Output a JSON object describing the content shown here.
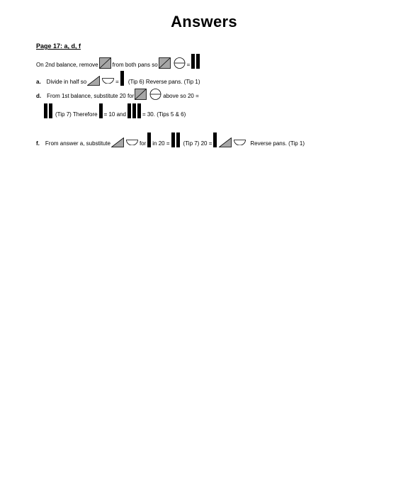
{
  "title": "Answers",
  "heading": "Page 17:  a, d, f",
  "lines": {
    "intro": {
      "t1": "On 2nd balance, remove",
      "t2": "from both pans so",
      "t3": "="
    },
    "a": {
      "label": "a.",
      "t1": "Divide in half so",
      "t2": "=",
      "t3": "(Tip 6)  Reverse pans.  (Tip 1)"
    },
    "d1": {
      "label": "d.",
      "t1": "From 1st balance, substitute 20 for",
      "t2": "above so 20 ="
    },
    "d2": {
      "t1": "(Tip 7)  Therefore",
      "t2": "= 10 and",
      "t3": "= 30.  (Tips 5 & 6)"
    },
    "f": {
      "label": "f.",
      "t1": "From answer a, substitute",
      "t2": "for",
      "t3": "in 20 =",
      "t4": "(Tip 7)  20 =",
      "t5": "Reverse pans.  (Tip 1)"
    }
  },
  "colors": {
    "shape_fill": "#a6a6a6",
    "bar": "#000000"
  },
  "icons": [
    "square-with-diagonal",
    "circle-with-line",
    "triangle",
    "semicircle",
    "black-bar"
  ]
}
